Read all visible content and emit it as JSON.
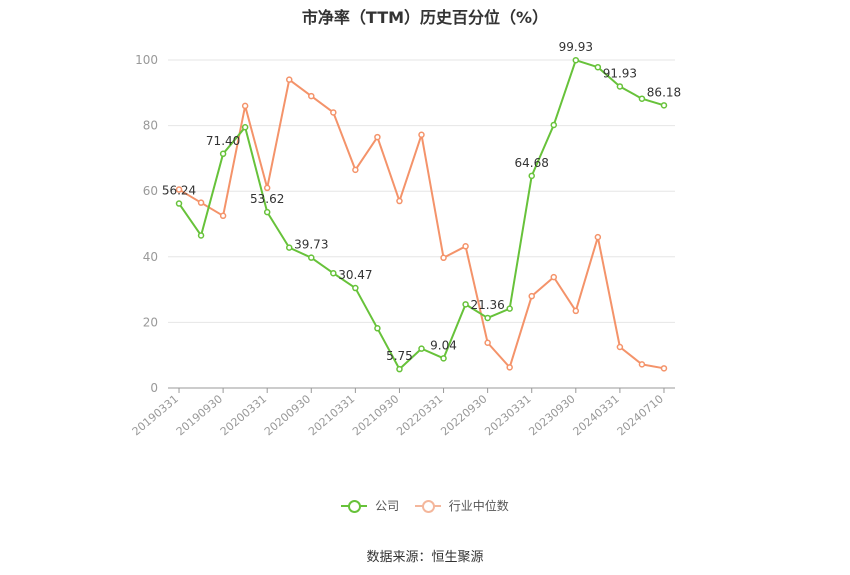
{
  "chart_data": {
    "type": "line",
    "title": "市净率（TTM）历史百分位（%）",
    "x": [
      "20190331",
      "20190630",
      "20190930",
      "20191231",
      "20200331",
      "20200630",
      "20200930",
      "20201231",
      "20210331",
      "20210630",
      "20210930",
      "20211231",
      "20220331",
      "20220630",
      "20220930",
      "20221231",
      "20230331",
      "20230630",
      "20230930",
      "20231231",
      "20240331",
      "20240630",
      "20240710"
    ],
    "x_tick_labels": [
      "20190331",
      "20190930",
      "20200331",
      "20200930",
      "20210331",
      "20210930",
      "20220331",
      "20220930",
      "20230331",
      "20230930",
      "20240331",
      "20240710"
    ],
    "ylim": [
      0,
      100
    ],
    "y_ticks": [
      0,
      20,
      40,
      60,
      80,
      100
    ],
    "grid": true,
    "legend_position": "bottom",
    "series": [
      {
        "name": "公司",
        "color": "#67c23a",
        "values": [
          56.24,
          46.5,
          71.4,
          79.5,
          53.62,
          42.8,
          39.73,
          35.0,
          30.47,
          18.2,
          5.75,
          12.0,
          9.04,
          25.5,
          21.36,
          24.2,
          64.68,
          80.2,
          99.93,
          97.8,
          91.93,
          88.2,
          86.18
        ],
        "labels": {
          "0": "56.24",
          "2": "71.40",
          "4": "53.62",
          "6": "39.73",
          "8": "30.47",
          "10": "5.75",
          "12": "9.04",
          "14": "21.36",
          "16": "64.68",
          "18": "99.93",
          "20": "91.93",
          "22": "86.18"
        }
      },
      {
        "name": "行业中位数",
        "color": "#f4936a",
        "values": [
          60.5,
          56.5,
          52.5,
          86.0,
          61.0,
          94.0,
          89.0,
          84.0,
          66.5,
          76.5,
          57.0,
          77.2,
          39.7,
          43.2,
          13.8,
          6.3,
          28.0,
          33.8,
          23.5,
          46.0,
          12.5,
          7.2,
          6.0
        ]
      }
    ]
  },
  "source": "数据来源：恒生聚源"
}
